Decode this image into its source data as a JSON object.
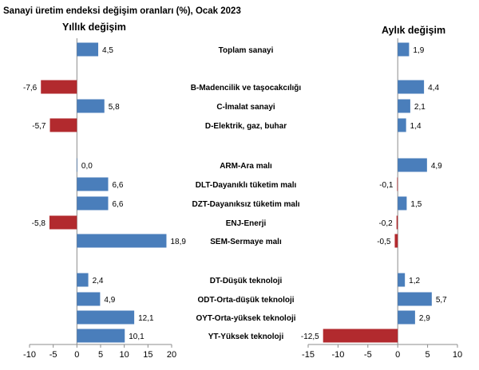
{
  "chart_data": {
    "type": "bar",
    "title": "Sanayi üretim endeksi değişim oranları (%), Ocak 2023",
    "categories": [
      "Toplam sanayi",
      "B-Madencilik ve taşocakcılığı",
      "C-İmalat sanayi",
      "D-Elektrik, gaz, buhar",
      "ARM-Ara malı",
      "DLT-Dayanıklı tüketim malı",
      "DZT-Dayanıksız tüketim malı",
      "ENJ-Enerji",
      "SEM-Sermaye malı",
      "DT-Düşük teknoloji",
      "ODT-Orta-düşük teknoloji",
      "OYT-Orta-yüksek teknoloji",
      "YT-Yüksek teknoloji"
    ],
    "series": [
      {
        "name": "Yıllık değişim",
        "values": [
          4.5,
          -7.6,
          5.8,
          -5.7,
          0.0,
          6.6,
          6.6,
          -5.8,
          18.9,
          2.4,
          4.9,
          12.1,
          10.1
        ],
        "labels": [
          "4,5",
          "-7,6",
          "5,8",
          "-5,7",
          "0,0",
          "6,6",
          "6,6",
          "-5,8",
          "18,9",
          "2,4",
          "4,9",
          "12,1",
          "10,1"
        ],
        "xlim": [
          -10,
          20
        ],
        "ticks": [
          -10,
          -5,
          0,
          5,
          10,
          15,
          20
        ]
      },
      {
        "name": "Aylık değişim",
        "values": [
          1.9,
          4.4,
          2.1,
          1.4,
          4.9,
          -0.1,
          1.5,
          -0.2,
          -0.5,
          1.2,
          5.7,
          2.9,
          -12.5
        ],
        "labels": [
          "1,9",
          "4,4",
          "2,1",
          "1,4",
          "4,9",
          "-0,1",
          "1,5",
          "-0,2",
          "-0,5",
          "1,2",
          "5,7",
          "2,9",
          "-12,5"
        ],
        "xlim": [
          -15,
          10
        ],
        "ticks": [
          -15,
          -10,
          -5,
          0,
          5,
          10
        ]
      }
    ],
    "colors": {
      "positive": "#4a7ebb",
      "negative": "#b22a2e"
    },
    "grid": false,
    "legend": "none"
  }
}
